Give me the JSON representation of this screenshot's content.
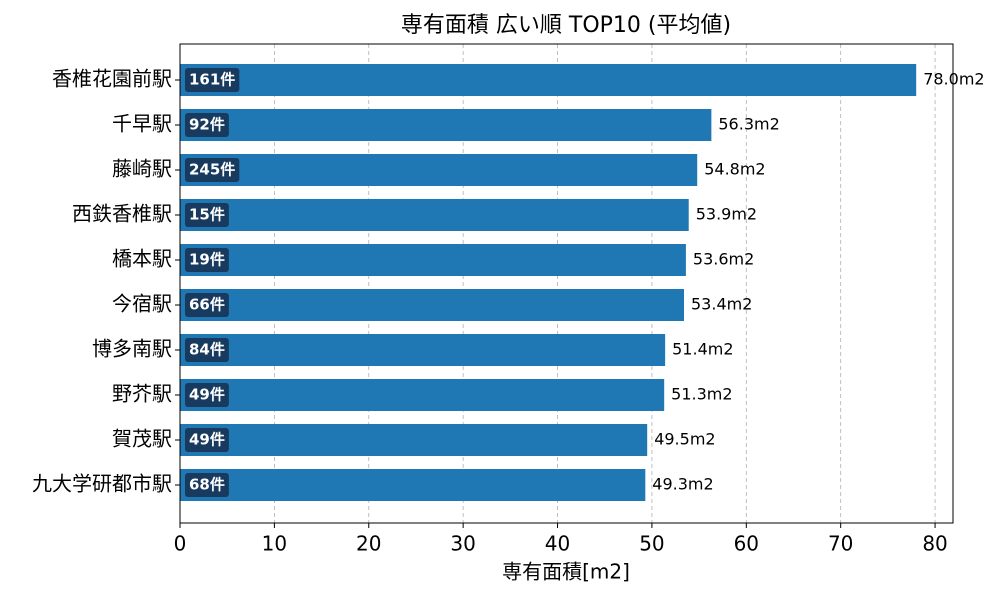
{
  "chart_data": {
    "type": "barh",
    "title": "専有面積 広い順 TOP10 (平均値)",
    "x_label": "専有面積[m2]",
    "categories": [
      "香椎花園前駅",
      "千早駅",
      "藤崎駅",
      "西鉄香椎駅",
      "橋本駅",
      "今宿駅",
      "博多南駅",
      "野芥駅",
      "賀茂駅",
      "九大学研都市駅"
    ],
    "values": [
      78.0,
      56.3,
      54.8,
      53.9,
      53.6,
      53.4,
      51.4,
      51.3,
      49.5,
      49.3
    ],
    "value_labels": [
      "78.0m2",
      "56.3m2",
      "54.8m2",
      "53.9m2",
      "53.6m2",
      "53.4m2",
      "51.4m2",
      "51.3m2",
      "49.5m2",
      "49.3m2"
    ],
    "count_labels": [
      "161件",
      "92件",
      "245件",
      "15件",
      "19件",
      "66件",
      "84件",
      "49件",
      "49件",
      "68件"
    ],
    "color": "#1f77b4",
    "count_box_color": "#173a5e",
    "xlim": [
      0,
      81.9
    ],
    "xticks": [
      0,
      10,
      20,
      30,
      40,
      50,
      60,
      70,
      80
    ],
    "grid": true
  }
}
